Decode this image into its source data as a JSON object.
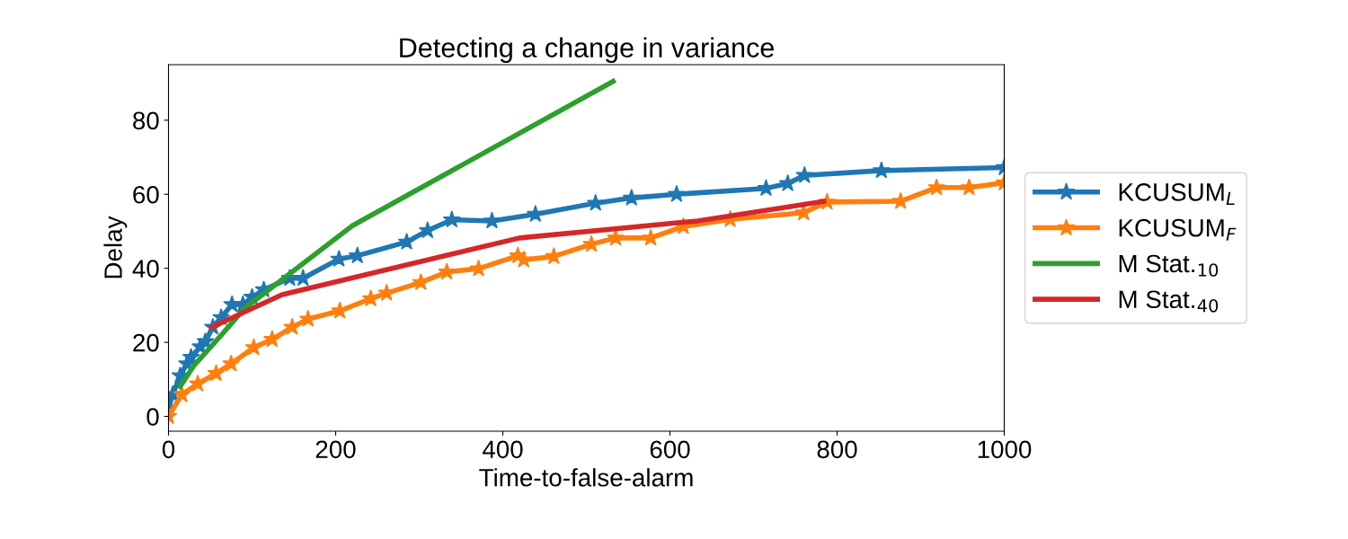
{
  "chart_data": {
    "type": "line",
    "title": "Detecting a change in variance",
    "xlabel": "Time-to-false-alarm",
    "ylabel": "Delay",
    "xlim": [
      0,
      1000
    ],
    "xticks": [
      0,
      200,
      400,
      600,
      800,
      1000
    ],
    "ylim": [
      -4,
      95
    ],
    "yticks": [
      0,
      20,
      40,
      60,
      80
    ],
    "grid": false,
    "legend": "right",
    "series": [
      {
        "name": "KCUSUM$_{L}$",
        "color": "#1f77b4",
        "marker": "star",
        "x": [
          0,
          5,
          14,
          22,
          27,
          38,
          44,
          53,
          63,
          76,
          89,
          100,
          114,
          145,
          161,
          204,
          226,
          285,
          310,
          339,
          387,
          439,
          511,
          554,
          608,
          715,
          741,
          761,
          853,
          1000
        ],
        "values": [
          2.2,
          5.9,
          11,
          14.2,
          16,
          18.8,
          20.2,
          24.1,
          26.7,
          30.2,
          30.2,
          32.2,
          34.2,
          37.3,
          37.3,
          42.5,
          43.4,
          47.1,
          50.2,
          53.1,
          52.8,
          54.6,
          57.6,
          59,
          60,
          61.6,
          62.9,
          65.1,
          66.4,
          67.2
        ]
      },
      {
        "name": "KCUSUM$_{F}$",
        "color": "#ff7f0e",
        "marker": "star",
        "x": [
          0,
          16,
          35,
          57,
          75,
          102,
          124,
          148,
          167,
          205,
          242,
          261,
          302,
          333,
          371,
          418,
          425,
          461,
          506,
          535,
          577,
          616,
          672,
          760,
          788,
          876,
          919,
          958,
          1000
        ],
        "values": [
          0,
          5.9,
          8.8,
          11.6,
          14.2,
          18.6,
          20.8,
          24.1,
          26.3,
          28.5,
          31.8,
          33.3,
          36.2,
          39,
          39.9,
          43.4,
          42.3,
          43.2,
          46.5,
          48.2,
          48.2,
          51.3,
          53.2,
          55,
          57.9,
          58.1,
          61.8,
          61.8,
          63.1
        ]
      },
      {
        "name": "M Stat.$_{10}$",
        "color": "#2ca02c",
        "marker": "none",
        "x": [
          14,
          30,
          65,
          91,
          220,
          532
        ],
        "values": [
          8.1,
          13.6,
          22.4,
          29.2,
          51.5,
          90.5
        ]
      },
      {
        "name": "M Stat.$_{40}$",
        "color": "#d62728",
        "marker": "none",
        "x": [
          52,
          87,
          136,
          420,
          633,
          784
        ],
        "values": [
          24.1,
          27.8,
          32.9,
          48.2,
          52.8,
          58.1
        ]
      }
    ]
  }
}
